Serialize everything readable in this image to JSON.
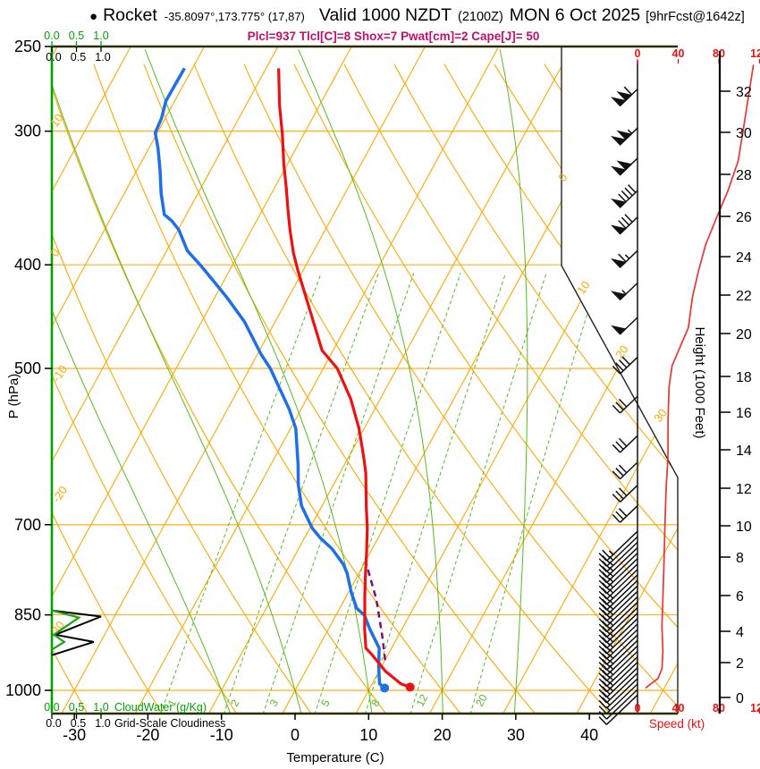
{
  "title": {
    "bullet": "●",
    "station": "Rocket",
    "coords": "-35.8097°,173.775° (17,87)",
    "valid": "Valid 1000 NZDT",
    "utc": "(2100Z)",
    "date": "MON 6 Oct 2025",
    "fcst": "[9hrFcst@1642z]"
  },
  "indices_line": "Plcl=937 Tlcl[C]=8 Shox=7 Pwat[cm]=2 Cape[J]= 50",
  "axes": {
    "pressure": {
      "label": "P (hPa)",
      "ticks": [
        250,
        300,
        400,
        500,
        700,
        850,
        1000
      ]
    },
    "temperature": {
      "label": "Temperature (C)",
      "ticks": [
        -30,
        -20,
        -10,
        0,
        10,
        20,
        30,
        40
      ]
    },
    "height": {
      "label": "Height (1000 Feet)",
      "ticks": [
        0,
        2,
        4,
        6,
        8,
        10,
        12,
        14,
        16,
        18,
        20,
        22,
        24,
        26,
        28,
        30,
        32
      ]
    },
    "speed": {
      "label": "Speed (kt)",
      "ticks": [
        0,
        40,
        80,
        120
      ]
    },
    "cloud": {
      "green_label": "CloudWater (g/Kg)",
      "black_label": "Grid-Scale Cloudiness",
      "ticks": [
        "0.0",
        "0.5",
        "1.0"
      ]
    }
  },
  "chart_data": {
    "type": "skew-t-log-p",
    "title": "Rocket sounding, valid 1000 NZDT MON 6 Oct 2025 (9 hr forecast)",
    "pressure_range_hPa": [
      250,
      1050
    ],
    "temperature_range_C": [
      -30,
      40
    ],
    "sounding": {
      "temperature_C": [
        [
          262,
          -48.3
        ],
        [
          284,
          -45.4
        ],
        [
          302,
          -42.9
        ],
        [
          322,
          -40.5
        ],
        [
          339,
          -38.4
        ],
        [
          354,
          -36.7
        ],
        [
          371,
          -34.8
        ],
        [
          390,
          -32.6
        ],
        [
          405,
          -30.7
        ],
        [
          443,
          -25.9
        ],
        [
          481,
          -21.5
        ],
        [
          500,
          -18.1
        ],
        [
          534,
          -14.0
        ],
        [
          569,
          -10.7
        ],
        [
          603,
          -8.1
        ],
        [
          626,
          -6.5
        ],
        [
          672,
          -4.0
        ],
        [
          705,
          -2.2
        ],
        [
          743,
          -0.5
        ],
        [
          777,
          0.9
        ],
        [
          814,
          2.4
        ],
        [
          838,
          3.4
        ],
        [
          876,
          4.9
        ],
        [
          913,
          6.5
        ],
        [
          927,
          7.9
        ],
        [
          960,
          10.9
        ],
        [
          986,
          13.9
        ],
        [
          993,
          15.4
        ]
      ],
      "dewpoint_C": [
        [
          262,
          -61.1
        ],
        [
          281,
          -61.2
        ],
        [
          292,
          -60.5
        ],
        [
          301,
          -60.3
        ],
        [
          311,
          -58.8
        ],
        [
          326,
          -56.9
        ],
        [
          343,
          -55.0
        ],
        [
          359,
          -53.0
        ],
        [
          364,
          -51.5
        ],
        [
          371,
          -49.9
        ],
        [
          388,
          -47.2
        ],
        [
          401,
          -44.2
        ],
        [
          419,
          -40.4
        ],
        [
          430,
          -38.2
        ],
        [
          452,
          -34.2
        ],
        [
          485,
          -29.5
        ],
        [
          500,
          -27.2
        ],
        [
          546,
          -21.6
        ],
        [
          569,
          -19.3
        ],
        [
          615,
          -16.3
        ],
        [
          642,
          -14.8
        ],
        [
          672,
          -12.8
        ],
        [
          705,
          -9.7
        ],
        [
          720,
          -7.9
        ],
        [
          737,
          -5.5
        ],
        [
          762,
          -2.8
        ],
        [
          777,
          -1.6
        ],
        [
          810,
          0.4
        ],
        [
          838,
          2.3
        ],
        [
          851,
          3.9
        ],
        [
          876,
          5.6
        ],
        [
          913,
          8.3
        ],
        [
          950,
          9.6
        ],
        [
          986,
          11.0
        ],
        [
          995,
          12.0
        ]
      ],
      "parcel_C": [
        [
          937,
          10.0
        ],
        [
          889,
          7.8
        ],
        [
          822,
          4.3
        ],
        [
          757,
          0.0
        ]
      ]
    },
    "wind": {
      "speed_profile_kt": [
        [
          260,
          114
        ],
        [
          275,
          110
        ],
        [
          295,
          105
        ],
        [
          320,
          99
        ],
        [
          341,
          89
        ],
        [
          361,
          78
        ],
        [
          383,
          67
        ],
        [
          405,
          60
        ],
        [
          429,
          54
        ],
        [
          458,
          50
        ],
        [
          497,
          34
        ],
        [
          520,
          31
        ],
        [
          560,
          30
        ],
        [
          604,
          30
        ],
        [
          650,
          28
        ],
        [
          700,
          27
        ],
        [
          760,
          26
        ],
        [
          820,
          25
        ],
        [
          870,
          24
        ],
        [
          920,
          25
        ],
        [
          955,
          24
        ],
        [
          975,
          20
        ],
        [
          988,
          12
        ],
        [
          995,
          8
        ]
      ],
      "barb_levels_hPa": [
        274,
        298,
        318,
        341,
        361,
        388,
        416,
        448,
        488,
        531,
        578,
        612,
        643,
        672
      ],
      "dense_layer": {
        "top_hPa": 710,
        "bottom_hPa": 1010,
        "count": 31
      }
    },
    "clouds": {
      "cloud_water_gkg": [
        [
          842,
          0
        ],
        [
          855,
          0.55
        ],
        [
          887,
          0.04
        ],
        [
          901,
          0.25
        ],
        [
          916,
          0
        ]
      ],
      "grid_scale_cloudiness": [
        [
          842,
          0
        ],
        [
          853,
          1.0
        ],
        [
          887,
          0.07
        ],
        [
          901,
          0.85
        ],
        [
          927,
          0
        ]
      ]
    },
    "grid": {
      "isotherms_C": {
        "min": -110,
        "max": 50,
        "step": 10
      },
      "dry_adiabats_C": {
        "min": -30,
        "max": 130,
        "step": 10
      },
      "moist_adiabats_C": [
        -10,
        0,
        10,
        20,
        30
      ],
      "mixing_ratio_gkg": [
        1,
        2,
        3,
        5,
        8,
        12,
        20
      ],
      "pressure_lines_hPa": [
        300,
        400,
        500,
        700,
        850,
        1000
      ],
      "right_isotherm_labels": [
        0,
        10,
        20,
        30
      ],
      "left_adiabat_labels": [
        10,
        0,
        -10,
        -20,
        -30
      ]
    }
  },
  "colors": {
    "grid_orange": "#FFA800",
    "grid_green": "#55BB22",
    "temp_red": "#EE1111",
    "dew_blue": "#1E6FE8",
    "parcel_purple": "#7A0E7A",
    "speed_red": "#E83535",
    "cloud_green": "#19A319",
    "magenta": "#C2106E",
    "frame_dark": "#2B2B00"
  }
}
